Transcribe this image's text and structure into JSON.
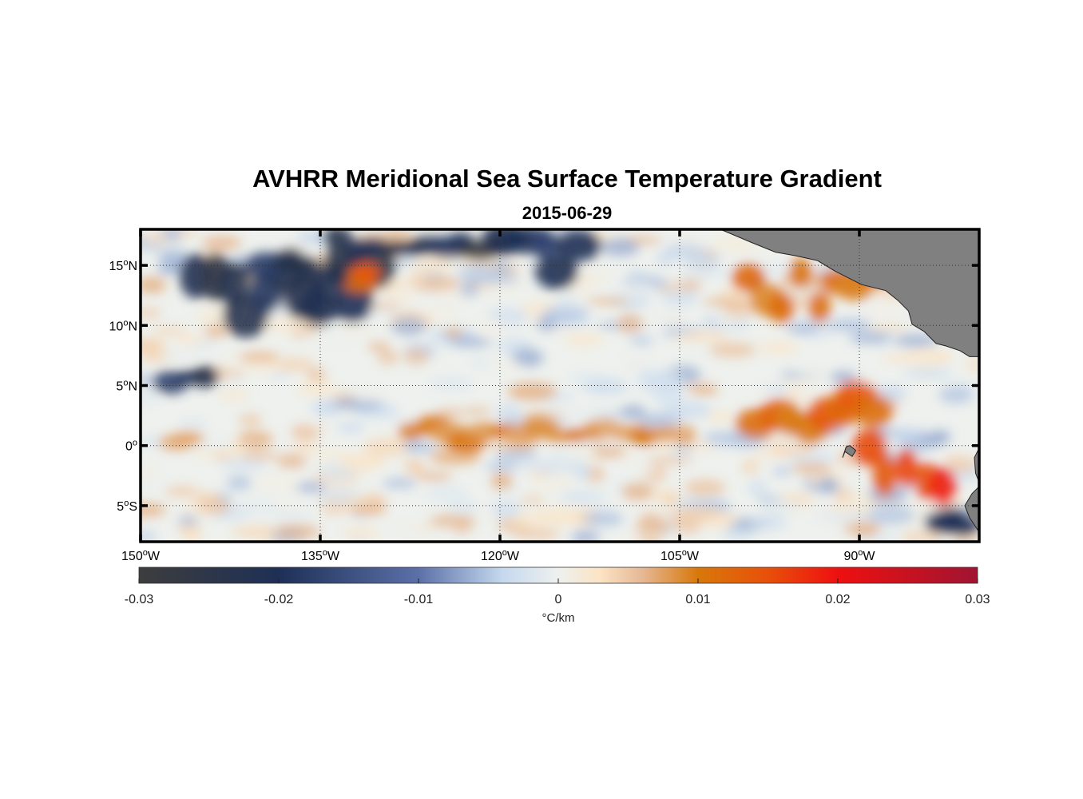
{
  "title": "AVHRR Meridional Sea Surface Temperature Gradient",
  "subtitle": "2015-06-29",
  "map": {
    "projection": "equirectangular",
    "lon_range": [
      -150,
      -80
    ],
    "lat_range": [
      -8,
      18
    ],
    "x_ticks": [
      {
        "lon": -150,
        "deg": "150",
        "hemi": "W"
      },
      {
        "lon": -135,
        "deg": "135",
        "hemi": "W"
      },
      {
        "lon": -120,
        "deg": "120",
        "hemi": "W"
      },
      {
        "lon": -105,
        "deg": "105",
        "hemi": "W"
      },
      {
        "lon": -90,
        "deg": "90",
        "hemi": "W"
      }
    ],
    "y_ticks": [
      {
        "lat": 15,
        "deg": "15",
        "hemi": "N"
      },
      {
        "lat": 10,
        "deg": "10",
        "hemi": "N"
      },
      {
        "lat": 5,
        "deg": "5",
        "hemi": "N"
      },
      {
        "lat": 0,
        "deg": "0",
        "hemi": ""
      },
      {
        "lat": -5,
        "deg": "5",
        "hemi": "S"
      }
    ],
    "land_color": "#808080",
    "frame_color": "#000000",
    "grid_style": "dotted"
  },
  "chart_data": {
    "type": "heatmap",
    "title": "AVHRR Meridional Sea Surface Temperature Gradient",
    "subtitle": "2015-06-29",
    "variable": "meridional SST gradient",
    "units": "°C/km",
    "clim": [
      -0.03,
      0.03
    ],
    "features": [
      {
        "lon": [
          -146,
          -130
        ],
        "lat": [
          10,
          16
        ],
        "value": -0.022,
        "desc": "negative band"
      },
      {
        "lon": [
          -140,
          -132
        ],
        "lat": [
          13,
          16
        ],
        "value": -0.023
      },
      {
        "lon": [
          -134,
          -118
        ],
        "lat": [
          16,
          18
        ],
        "value": -0.024
      },
      {
        "lon": [
          -120,
          -113
        ],
        "lat": [
          14,
          18
        ],
        "value": -0.02
      },
      {
        "lon": [
          -148,
          -144
        ],
        "lat": [
          5,
          7
        ],
        "value": -0.02
      },
      {
        "lon": [
          -99,
          -88
        ],
        "lat": [
          1,
          5
        ],
        "value": 0.012,
        "desc": "positive band"
      },
      {
        "lon": [
          -100,
          -88
        ],
        "lat": [
          11,
          15
        ],
        "value": 0.012
      },
      {
        "lon": [
          -90,
          -82
        ],
        "lat": [
          -4,
          1
        ],
        "value": 0.016
      },
      {
        "lon": [
          -128,
          -104
        ],
        "lat": [
          0,
          2
        ],
        "value": 0.009
      },
      {
        "lon": [
          -147,
          -146
        ],
        "lat": [
          0,
          1
        ],
        "value": 0.007
      },
      {
        "lon": [
          -84,
          -81
        ],
        "lat": [
          -7,
          -5
        ],
        "value": -0.022
      },
      {
        "lon": [
          -132,
          -131
        ],
        "lat": [
          13,
          15
        ],
        "value": 0.012
      }
    ]
  },
  "colorbar": {
    "ticks": [
      "-0.03",
      "-0.02",
      "-0.01",
      "0",
      "0.01",
      "0.02",
      "0.03"
    ],
    "tick_values": [
      -0.03,
      -0.02,
      -0.01,
      0,
      0.01,
      0.02,
      0.03
    ],
    "label": "°C/km",
    "stops": [
      {
        "v": -0.03,
        "c": "#3d3d3d"
      },
      {
        "v": -0.02,
        "c": "#1e3056"
      },
      {
        "v": -0.01,
        "c": "#5b70a8"
      },
      {
        "v": -0.004,
        "c": "#c5d8ee"
      },
      {
        "v": 0,
        "c": "#eef1ee"
      },
      {
        "v": 0.003,
        "c": "#fbe3c4"
      },
      {
        "v": 0.006,
        "c": "#e6b895"
      },
      {
        "v": 0.01,
        "c": "#d8780a"
      },
      {
        "v": 0.015,
        "c": "#e8500a"
      },
      {
        "v": 0.02,
        "c": "#ee1010"
      },
      {
        "v": 0.03,
        "c": "#a01432"
      }
    ]
  }
}
